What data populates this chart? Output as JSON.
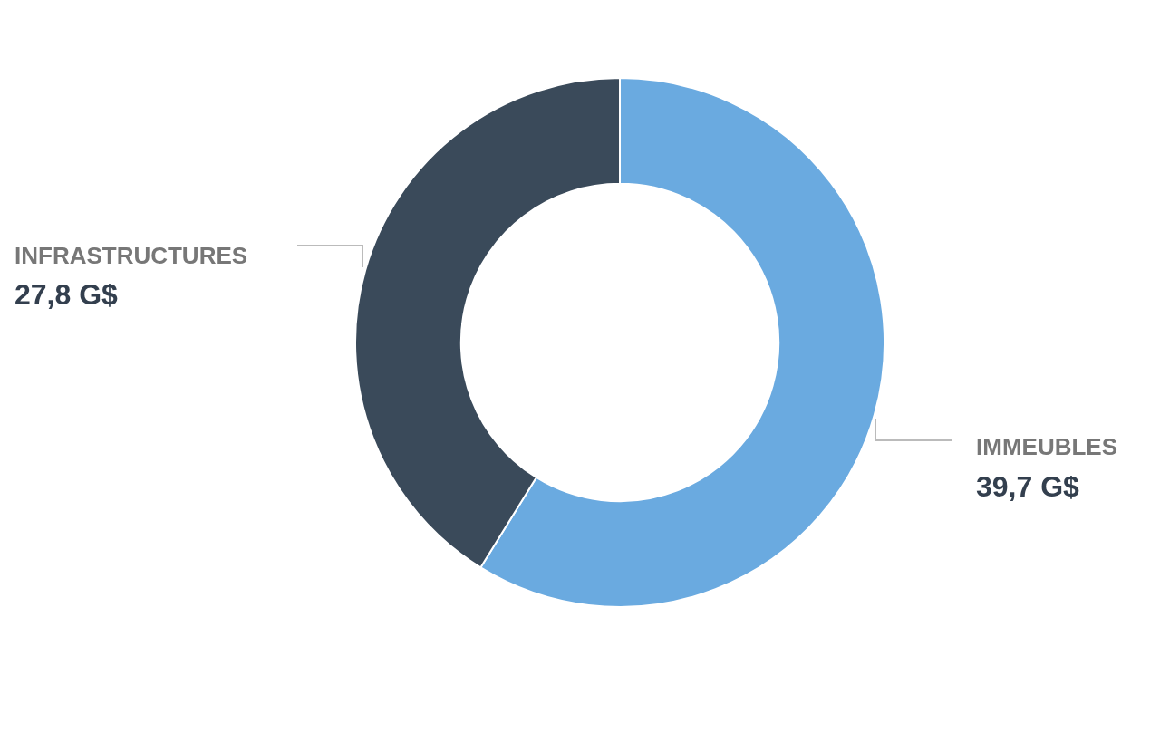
{
  "chart_data": {
    "type": "donut",
    "categories": [
      "IMMEUBLES",
      "INFRASTRUCTURES"
    ],
    "values": [
      39.7,
      27.8
    ],
    "colors": [
      "#6aaae0",
      "#3a4a5a"
    ],
    "value_labels": [
      "39,7 G$",
      "27,8 G$"
    ]
  }
}
